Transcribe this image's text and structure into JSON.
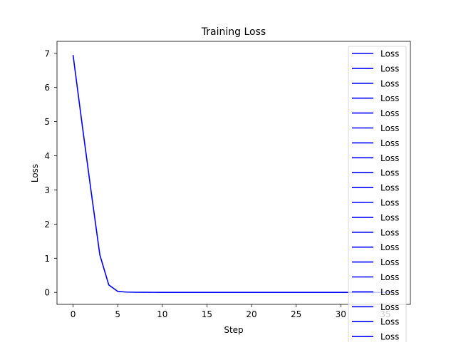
{
  "chart_data": {
    "type": "line",
    "title": "Training Loss",
    "xlabel": "Step",
    "ylabel": "Loss",
    "xlim": [
      -1.8,
      37.8
    ],
    "ylim": [
      -0.35,
      7.35
    ],
    "xticks": [
      0,
      5,
      10,
      15,
      20,
      25,
      30,
      35
    ],
    "yticks": [
      0,
      1,
      2,
      3,
      4,
      5,
      6,
      7
    ],
    "legend_loc": "upper right",
    "legend_labels": [
      "Loss",
      "Loss",
      "Loss",
      "Loss",
      "Loss",
      "Loss",
      "Loss",
      "Loss",
      "Loss",
      "Loss",
      "Loss",
      "Loss",
      "Loss",
      "Loss",
      "Loss",
      "Loss",
      "Loss",
      "Loss",
      "Loss",
      "Loss"
    ],
    "series": [
      {
        "name": "Loss",
        "color": "#0000ff",
        "x": [
          0,
          1,
          2,
          3,
          4,
          5,
          6,
          7,
          8,
          9,
          10,
          11,
          12,
          13,
          14,
          15,
          16,
          17,
          18,
          19,
          20,
          21,
          22,
          23,
          24,
          25,
          26,
          27,
          28,
          29,
          30,
          31,
          32,
          33,
          34,
          35,
          36
        ],
        "y": [
          6.95,
          4.95,
          3.0,
          1.1,
          0.22,
          0.03,
          0.01,
          0.005,
          0.003,
          0.002,
          0.001,
          0.001,
          0.001,
          0.001,
          0.001,
          0.001,
          0.001,
          0.001,
          0.001,
          0.001,
          0.001,
          0.001,
          0.001,
          0.001,
          0.001,
          0.001,
          0.001,
          0.001,
          0.001,
          0.001,
          0.001,
          0.001,
          0.001,
          0.001,
          0.001,
          0.001,
          0.001
        ]
      }
    ]
  }
}
